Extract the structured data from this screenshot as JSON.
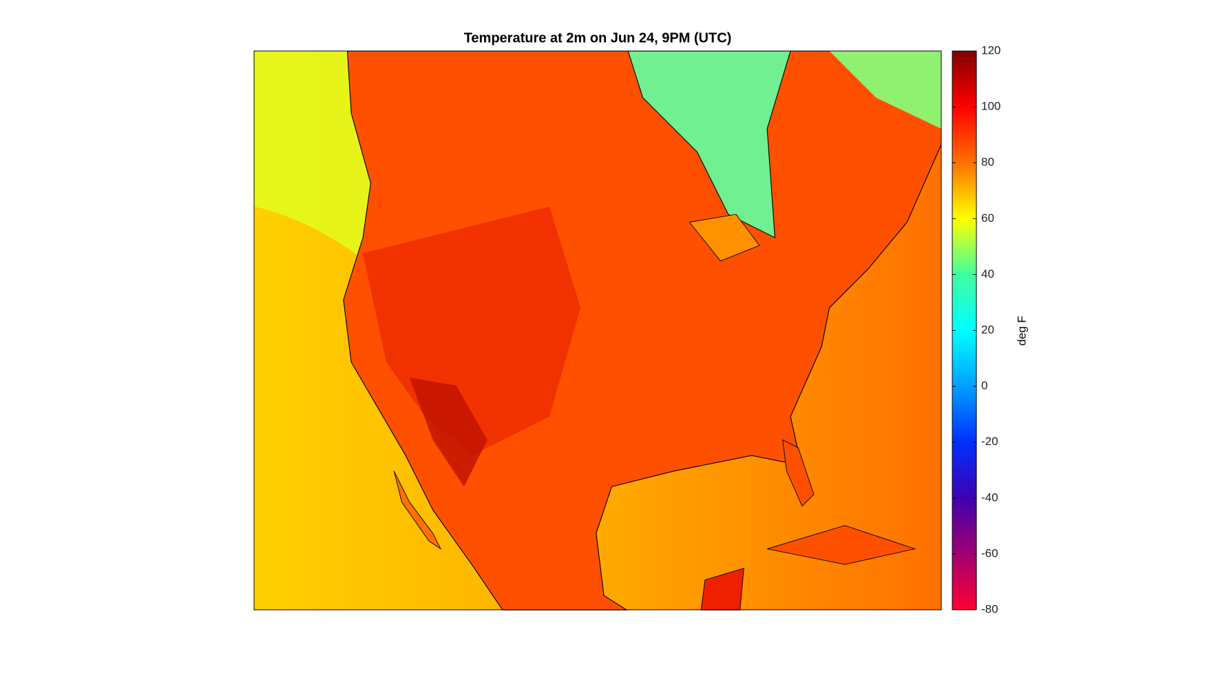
{
  "title": "Temperature at 2m on Jun 24, 9PM (UTC)",
  "colorbar": {
    "label": "deg F",
    "lim": [
      -80,
      120
    ],
    "ticks": [
      -80,
      -60,
      -40,
      -20,
      0,
      20,
      40,
      60,
      80,
      100,
      120
    ],
    "colors": [
      "#ff0030",
      "#a00070",
      "#4000b0",
      "#0030ff",
      "#00a0ff",
      "#00ffff",
      "#40ffa0",
      "#ffff00",
      "#ff7000",
      "#ff0000",
      "#800000"
    ]
  }
}
